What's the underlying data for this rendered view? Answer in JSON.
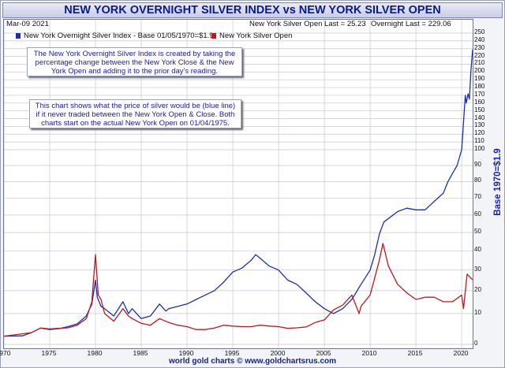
{
  "title": "NEW YORK OVERNIGHT SILVER INDEX vs NEW YORK SILVER OPEN",
  "date": "Mar-09  2021",
  "last_open": "New York Silver Open Last = 25.23",
  "last_overnight": "Overnight Last = 229.06",
  "legend": [
    {
      "label": "New York Overnight Silver Index - Base 01/05/1970=$1.9",
      "color": "#1a2fb0"
    },
    {
      "label": "New York Silver Open",
      "color": "#c0181c"
    }
  ],
  "note1": "The New York Overnight Silver Index is created by taking the percentage change between the New York Close & the New York Open and adding it to the prior day's reading.",
  "note2": "This chart shows what the price of silver would be (blue line) if it never traded between the New York Open & Close. Both charts start on the actual New York Open on 01/04/1975.",
  "ylabel_right": "Base 1970=$1.9",
  "footer": "world gold charts © www.goldchartsrus.com",
  "chart_data": {
    "type": "line",
    "xlim": [
      1970,
      2021.2
    ],
    "x_ticks": [
      1970,
      1975,
      1980,
      1985,
      1990,
      1995,
      2000,
      2005,
      2010,
      2015,
      2020
    ],
    "y_ticks": [
      0,
      10,
      20,
      30,
      40,
      50,
      60,
      70,
      80,
      90,
      100,
      110,
      120,
      130,
      140,
      150,
      160,
      170,
      180,
      190,
      200,
      210,
      220,
      230,
      240,
      250
    ],
    "scale_note": "nonlinear axis: 0-100 compressed, 100-250 linear",
    "series": [
      {
        "name": "New York Overnight Silver Index - Base 01/05/1970=$1.9",
        "color": "#1a2fb0",
        "points": [
          [
            1970,
            1.9
          ],
          [
            1972,
            2
          ],
          [
            1973,
            3
          ],
          [
            1974,
            4.5
          ],
          [
            1975,
            4
          ],
          [
            1976,
            4.3
          ],
          [
            1977,
            5
          ],
          [
            1978,
            6
          ],
          [
            1979,
            9
          ],
          [
            1979.6,
            14
          ],
          [
            1980,
            25
          ],
          [
            1980.2,
            17
          ],
          [
            1980.6,
            13
          ],
          [
            1981,
            12
          ],
          [
            1982,
            9
          ],
          [
            1983,
            15
          ],
          [
            1983.6,
            10
          ],
          [
            1984,
            12
          ],
          [
            1985,
            8
          ],
          [
            1986,
            9
          ],
          [
            1987,
            14
          ],
          [
            1987.7,
            11
          ],
          [
            1988,
            12
          ],
          [
            1989,
            13
          ],
          [
            1990,
            14
          ],
          [
            1991,
            16
          ],
          [
            1992,
            18
          ],
          [
            1993,
            20
          ],
          [
            1994,
            24
          ],
          [
            1995,
            29
          ],
          [
            1996,
            31
          ],
          [
            1997,
            35
          ],
          [
            1997.5,
            38
          ],
          [
            1998,
            36
          ],
          [
            1999,
            32
          ],
          [
            2000,
            30
          ],
          [
            2001,
            25
          ],
          [
            2002,
            23
          ],
          [
            2003,
            19
          ],
          [
            2004,
            15
          ],
          [
            2005,
            12
          ],
          [
            2006,
            10
          ],
          [
            2007,
            12
          ],
          [
            2008,
            16
          ],
          [
            2009,
            23
          ],
          [
            2010,
            30
          ],
          [
            2010.5,
            38
          ],
          [
            2011,
            49
          ],
          [
            2011.5,
            56
          ],
          [
            2012,
            58
          ],
          [
            2013,
            62
          ],
          [
            2014,
            64
          ],
          [
            2015,
            63
          ],
          [
            2016,
            63
          ],
          [
            2017,
            68
          ],
          [
            2018,
            73
          ],
          [
            2018.5,
            80
          ],
          [
            2019,
            85
          ],
          [
            2019.5,
            90
          ],
          [
            2020,
            100
          ],
          [
            2020.2,
            135
          ],
          [
            2020.4,
            170
          ],
          [
            2020.5,
            160
          ],
          [
            2020.7,
            172
          ],
          [
            2020.85,
            165
          ],
          [
            2021,
            200
          ],
          [
            2021.2,
            229
          ]
        ]
      },
      {
        "name": "New York Silver Open",
        "color": "#c0181c",
        "points": [
          [
            1970,
            1.9
          ],
          [
            1973,
            3
          ],
          [
            1974,
            4.5
          ],
          [
            1975,
            4.2
          ],
          [
            1976,
            4.4
          ],
          [
            1977,
            4.6
          ],
          [
            1978,
            5.5
          ],
          [
            1979,
            8
          ],
          [
            1979.6,
            15
          ],
          [
            1980,
            38
          ],
          [
            1980.3,
            18
          ],
          [
            1980.6,
            16
          ],
          [
            1981,
            10
          ],
          [
            1982,
            7
          ],
          [
            1983,
            12
          ],
          [
            1983.6,
            9
          ],
          [
            1984,
            8
          ],
          [
            1985,
            6.2
          ],
          [
            1986,
            5.5
          ],
          [
            1987,
            8
          ],
          [
            1988,
            6.5
          ],
          [
            1989,
            5.5
          ],
          [
            1990,
            5
          ],
          [
            1991,
            4
          ],
          [
            1992,
            4
          ],
          [
            1993,
            4.5
          ],
          [
            1994,
            5.5
          ],
          [
            1995,
            5.2
          ],
          [
            1996,
            5
          ],
          [
            1997,
            5
          ],
          [
            1998,
            5.5
          ],
          [
            1999,
            5.2
          ],
          [
            2000,
            5
          ],
          [
            2001,
            4.4
          ],
          [
            2002,
            4.6
          ],
          [
            2003,
            4.9
          ],
          [
            2004,
            6.5
          ],
          [
            2005,
            7.5
          ],
          [
            2006,
            11.5
          ],
          [
            2007,
            13.5
          ],
          [
            2008,
            18
          ],
          [
            2008.8,
            10
          ],
          [
            2009,
            13
          ],
          [
            2010,
            18
          ],
          [
            2011,
            35
          ],
          [
            2011.4,
            44
          ],
          [
            2012,
            32
          ],
          [
            2013,
            23
          ],
          [
            2014,
            19
          ],
          [
            2015,
            16
          ],
          [
            2016,
            17
          ],
          [
            2017,
            17
          ],
          [
            2018,
            15
          ],
          [
            2019,
            15
          ],
          [
            2020,
            18
          ],
          [
            2020.2,
            12
          ],
          [
            2020.6,
            28
          ],
          [
            2021,
            26
          ],
          [
            2021.2,
            25.2
          ]
        ]
      }
    ]
  }
}
